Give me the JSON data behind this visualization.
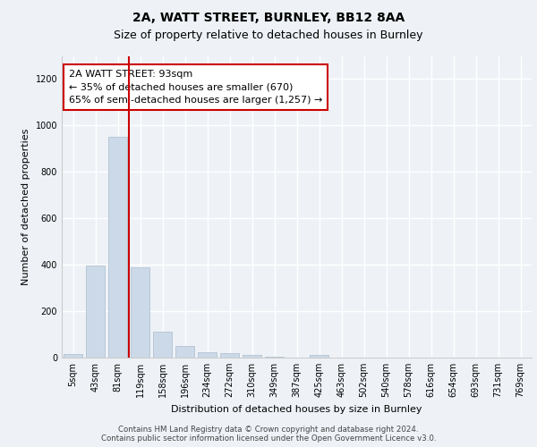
{
  "title_line1": "2A, WATT STREET, BURNLEY, BB12 8AA",
  "title_line2": "Size of property relative to detached houses in Burnley",
  "xlabel": "Distribution of detached houses by size in Burnley",
  "ylabel": "Number of detached properties",
  "footer_line1": "Contains HM Land Registry data © Crown copyright and database right 2024.",
  "footer_line2": "Contains public sector information licensed under the Open Government Licence v3.0.",
  "bar_labels": [
    "5sqm",
    "43sqm",
    "81sqm",
    "119sqm",
    "158sqm",
    "196sqm",
    "234sqm",
    "272sqm",
    "310sqm",
    "349sqm",
    "387sqm",
    "425sqm",
    "463sqm",
    "502sqm",
    "540sqm",
    "578sqm",
    "616sqm",
    "654sqm",
    "693sqm",
    "731sqm",
    "769sqm"
  ],
  "bar_values": [
    15,
    395,
    950,
    390,
    110,
    52,
    25,
    20,
    13,
    5,
    0,
    10,
    0,
    0,
    0,
    0,
    0,
    0,
    0,
    0,
    0
  ],
  "bar_color": "#ccd9e8",
  "bar_edgecolor": "#aabccc",
  "vline_x": 2.5,
  "vline_color": "#cc0000",
  "ylim": [
    0,
    1300
  ],
  "yticks": [
    0,
    200,
    400,
    600,
    800,
    1000,
    1200
  ],
  "annotation_text": "2A WATT STREET: 93sqm\n← 35% of detached houses are smaller (670)\n65% of semi-detached houses are larger (1,257) →",
  "bg_color": "#eef2f7",
  "plot_bg_color": "#eef2f7",
  "grid_color": "#ffffff",
  "title1_fontsize": 10,
  "title2_fontsize": 9,
  "axis_label_fontsize": 8,
  "tick_fontsize": 7,
  "annotation_fontsize": 8
}
